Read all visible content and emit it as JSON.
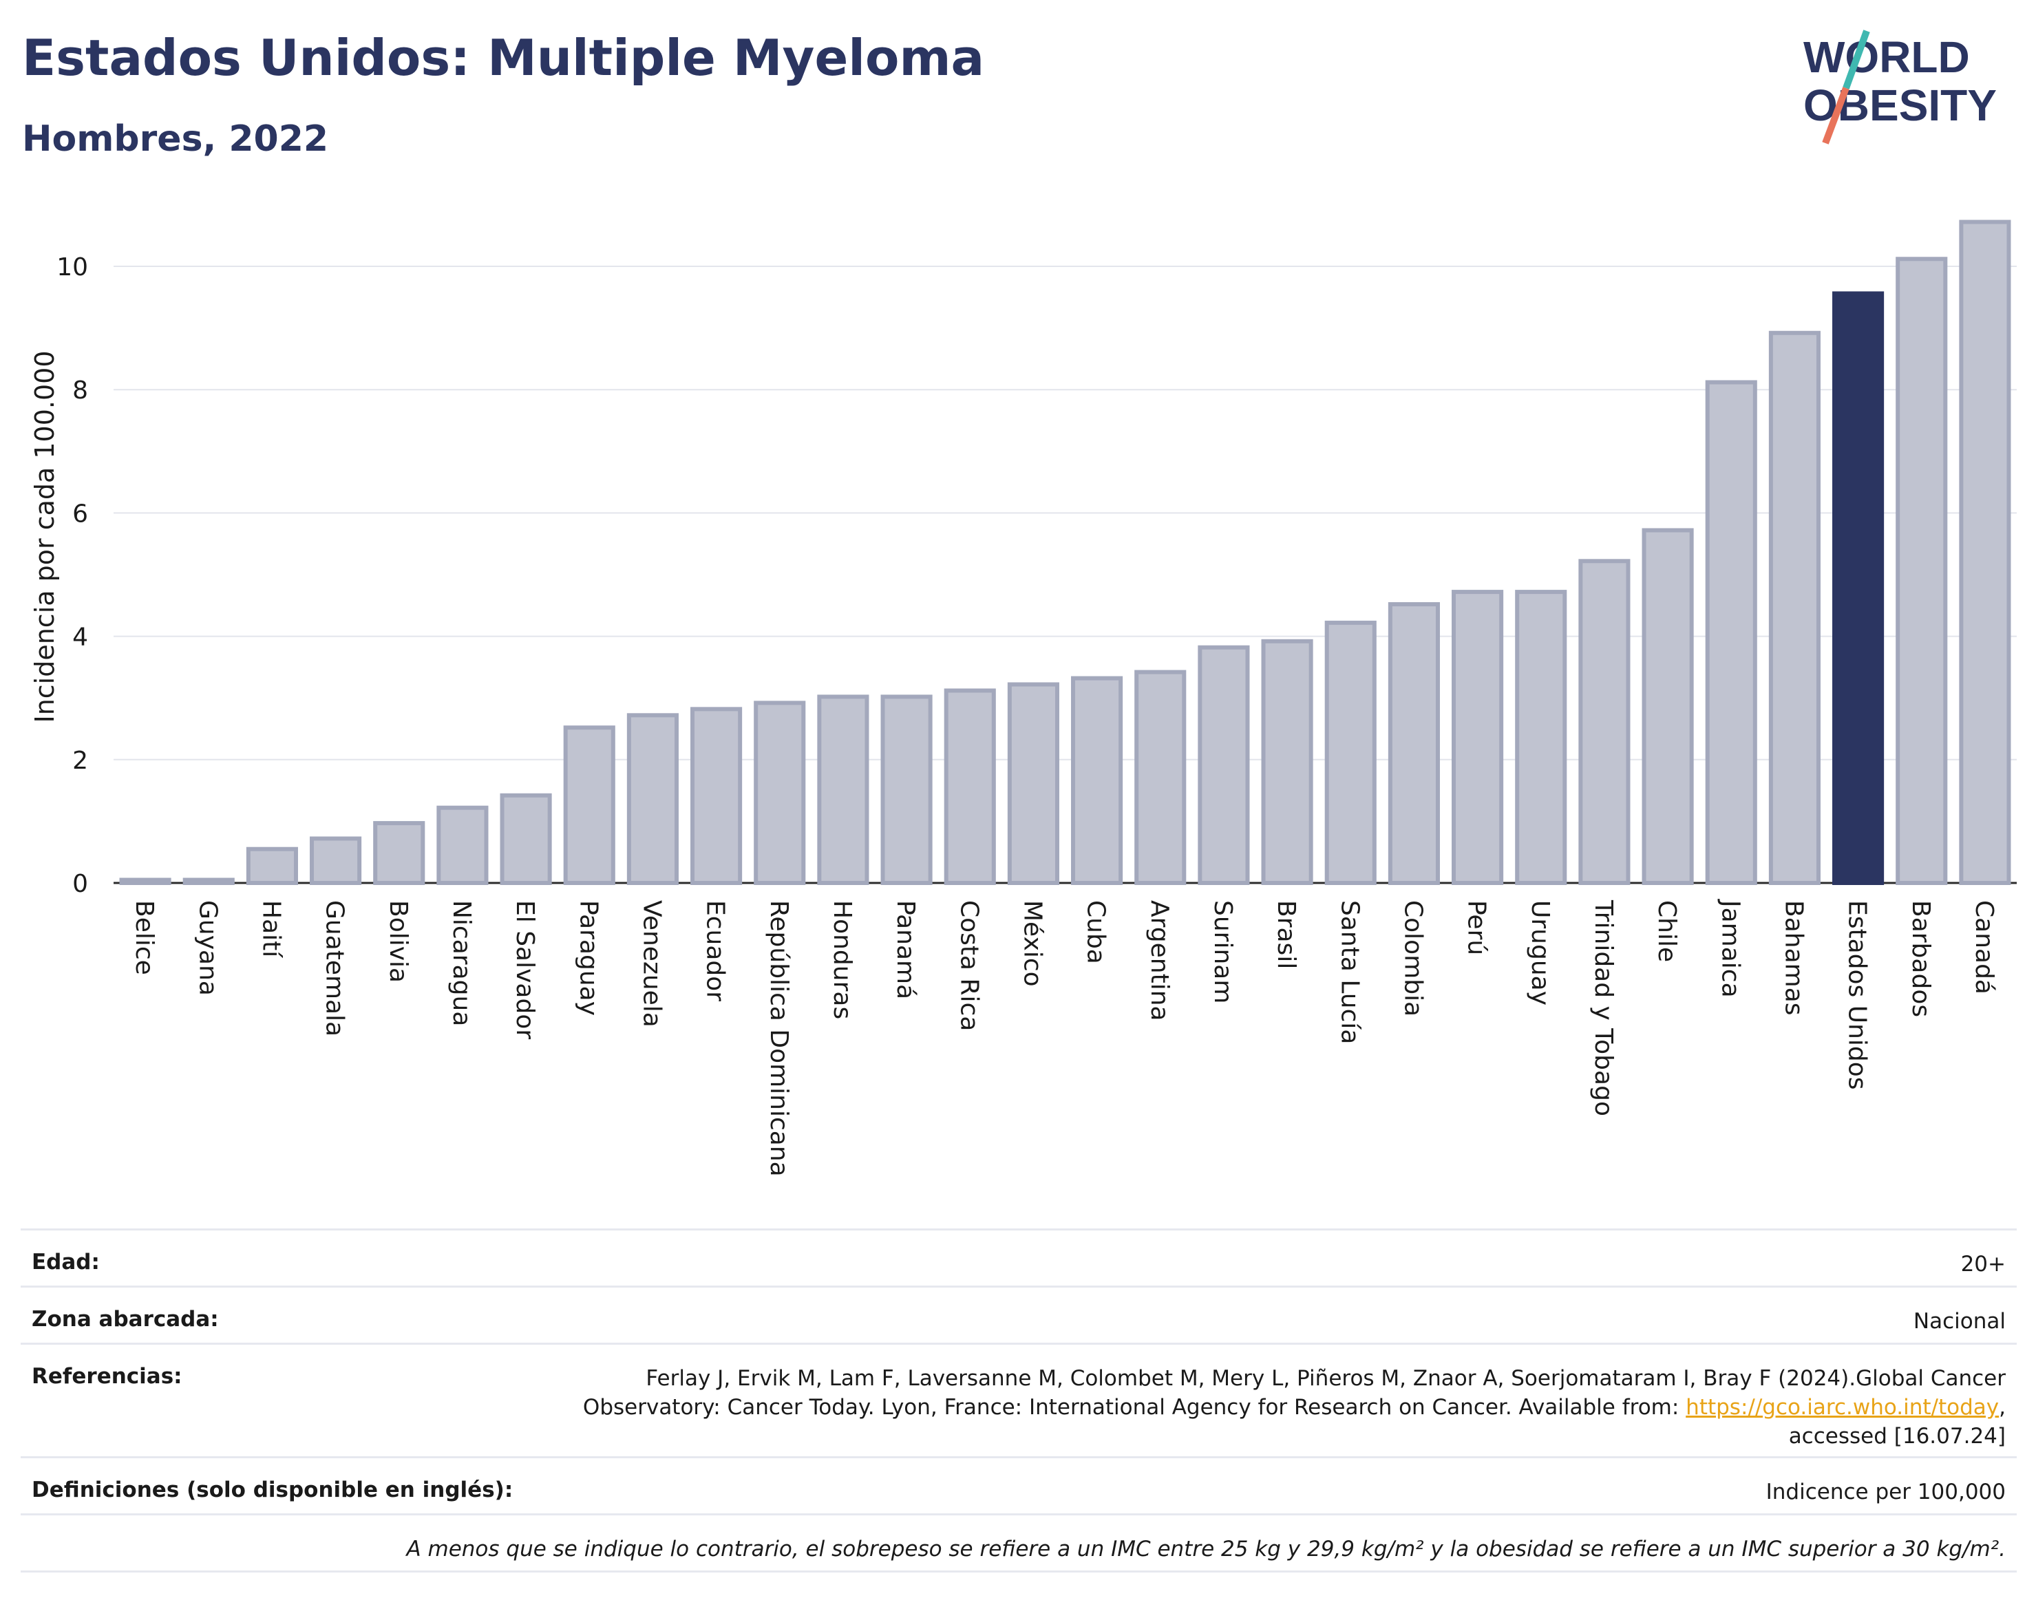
{
  "header": {
    "title": "Estados Unidos: Multiple Myeloma",
    "subtitle": "Hombres, 2022",
    "logo_text": [
      "WORLD",
      "OBESITY"
    ]
  },
  "colors": {
    "bar": "#c0c3d0",
    "bar_stroke": "#a3a8bc",
    "highlight": "#2b3561",
    "logo_slash_top": "#3fb8b0",
    "logo_slash_bottom": "#e8735a",
    "link": "#e8a317"
  },
  "chart_data": {
    "type": "bar",
    "ylabel": "Incidencia por cada 100.000",
    "xlabel": "",
    "ylim": [
      0,
      11
    ],
    "yticks": [
      0,
      2,
      4,
      6,
      8,
      10
    ],
    "grid": true,
    "highlight": "Estados Unidos",
    "categories": [
      "Belice",
      "Guyana",
      "Haití",
      "Guatemala",
      "Bolivia",
      "Nicaragua",
      "El Salvador",
      "Paraguay",
      "Venezuela",
      "Ecuador",
      "República Dominicana",
      "Honduras",
      "Panamá",
      "Costa Rica",
      "México",
      "Cuba",
      "Argentina",
      "Surinam",
      "Brasil",
      "Santa Lucía",
      "Colombia",
      "Perú",
      "Uruguay",
      "Trinidad y Tobago",
      "Chile",
      "Jamaica",
      "Bahamas",
      "Estados Unidos",
      "Barbados",
      "Canadá"
    ],
    "values": [
      0.05,
      0.05,
      0.55,
      0.72,
      0.97,
      1.22,
      1.42,
      2.52,
      2.72,
      2.82,
      2.92,
      3.02,
      3.02,
      3.12,
      3.22,
      3.32,
      3.42,
      3.82,
      3.92,
      4.22,
      4.52,
      4.72,
      4.72,
      5.22,
      5.72,
      8.12,
      8.92,
      9.56,
      10.12,
      10.72
    ]
  },
  "info": {
    "edad_label": "Edad:",
    "edad_value": "20+",
    "zona_label": "Zona abarcada:",
    "zona_value": "Nacional",
    "ref_label": "Referencias:",
    "ref_line1": "Ferlay J, Ervik M, Lam F, Laversanne M, Colombet M, Mery L, Piñeros M, Znaor A, Soerjomataram I, Bray F (2024).Global Cancer",
    "ref_line2_prefix": "Observatory: Cancer Today. Lyon, France: International Agency for Research on Cancer. Available from: ",
    "ref_link": "https://gco.iarc.who.int/today",
    "ref_line2_suffix": ",",
    "ref_line3": "accessed [16.07.24]",
    "def_label": "Definiciones (solo disponible en inglés):",
    "def_value": "Indicence per 100,000",
    "footnote": "A menos que se indique lo contrario, el sobrepeso se refiere a un IMC entre 25 kg y 29,9 kg/m² y la obesidad se refiere a un IMC superior a 30 kg/m²."
  }
}
